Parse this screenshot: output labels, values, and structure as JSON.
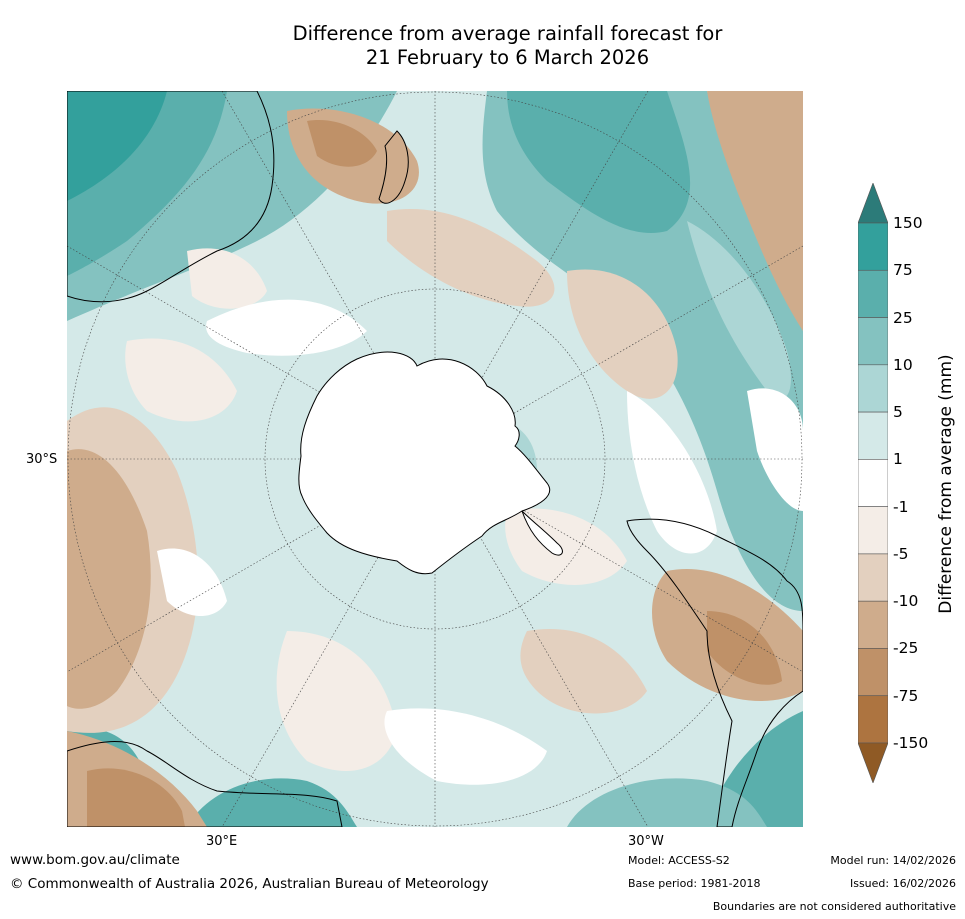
{
  "title": {
    "line1": "Difference from average rainfall forecast for",
    "line2": "21 February to 6 March 2026"
  },
  "map": {
    "lat_label": "30°S",
    "lon_labels": [
      "30°E",
      "30°W"
    ],
    "projection": "south polar stereographic"
  },
  "colorbar": {
    "label": "Difference from average (mm)",
    "ticks": [
      "150",
      "75",
      "25",
      "10",
      "5",
      "1",
      "-1",
      "-5",
      "-10",
      "-25",
      "-75",
      "-150"
    ],
    "colors": [
      "#2c7b79",
      "#33a09c",
      "#5aafac",
      "#84c2c0",
      "#acd6d5",
      "#d4e9e8",
      "#ffffff",
      "#f4ede7",
      "#e3d0bf",
      "#cfac8c",
      "#bf9168",
      "#ad7440",
      "#8f5a25"
    ]
  },
  "footer": {
    "website": "www.bom.gov.au/climate",
    "copyright": "© Commonwealth of Australia 2026, Australian Bureau of Meteorology",
    "model": "Model: ACCESS-S2",
    "base_period": "Base period: 1981-2018",
    "model_run": "Model run: 14/02/2026",
    "issued": "Issued: 16/02/2026",
    "disclaimer": "Boundaries are not considered authoritative"
  }
}
